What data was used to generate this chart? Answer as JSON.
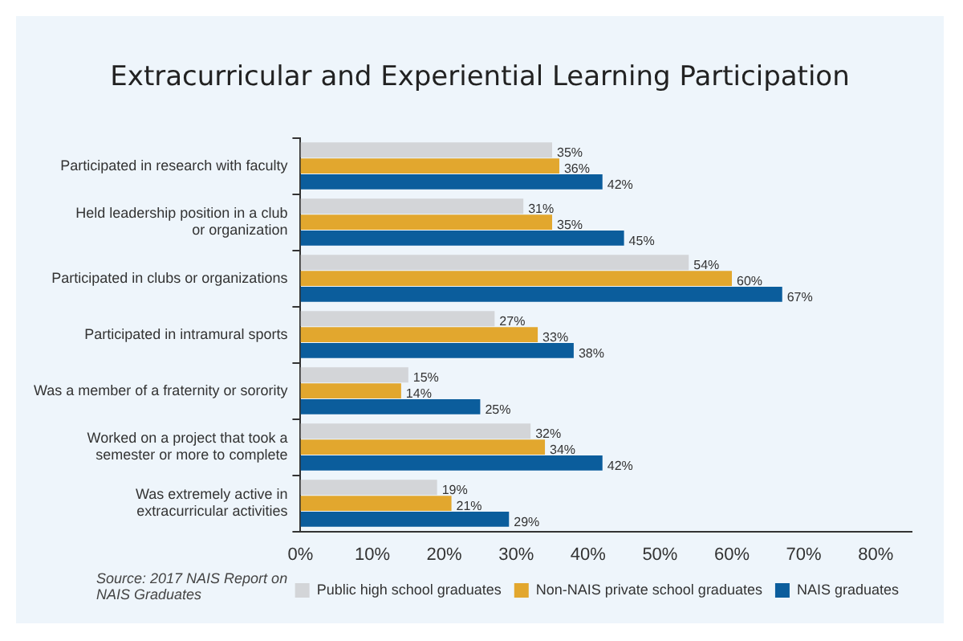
{
  "chart_data": {
    "type": "bar",
    "orientation": "horizontal",
    "title": "Extracurricular and Experiential Learning Participation",
    "categories": [
      "Participated in research with faculty",
      "Held leadership position in a club or organization",
      "Participated in clubs or organizations",
      "Participated in intramural sports",
      "Was a member of a fraternity or sorority",
      "Worked on a project that took a semester or more to complete",
      "Was extremely active in extracurricular activities"
    ],
    "series": [
      {
        "name": "Public high school graduates",
        "color": "#d3d5d8",
        "values": [
          35,
          31,
          54,
          27,
          15,
          32,
          19
        ],
        "value_labels": [
          "35%",
          "31%",
          "54%",
          "27%",
          "15%",
          "32%",
          "19%"
        ]
      },
      {
        "name": "Non-NAIS private school graduates",
        "color": "#e2a72e",
        "values": [
          36,
          35,
          60,
          33,
          14,
          34,
          21
        ],
        "value_labels": [
          "36%",
          "35%",
          "60%",
          "33%",
          "14%",
          "34%",
          "21%"
        ]
      },
      {
        "name": "NAIS graduates",
        "color": "#0b5d9c",
        "values": [
          42,
          45,
          67,
          38,
          25,
          42,
          29
        ],
        "value_labels": [
          "42%",
          "45%",
          "67%",
          "38%",
          "25%",
          "42%",
          "29%"
        ]
      }
    ],
    "xlim": [
      0,
      85
    ],
    "xticks": [
      {
        "value": 0,
        "label": "0%"
      },
      {
        "value": 10,
        "label": "10%"
      },
      {
        "value": 20,
        "label": "20%"
      },
      {
        "value": 30,
        "label": "30%"
      },
      {
        "value": 40,
        "label": "40%"
      },
      {
        "value": 50,
        "label": "50%"
      },
      {
        "value": 60,
        "label": "60%"
      },
      {
        "value": 70,
        "label": "70%"
      },
      {
        "value": 80,
        "label": "80%"
      }
    ],
    "legend": "bottom right",
    "grid": false,
    "annotations": [
      "Source: 2017 NAIS Report on NAIS Graduates"
    ]
  }
}
